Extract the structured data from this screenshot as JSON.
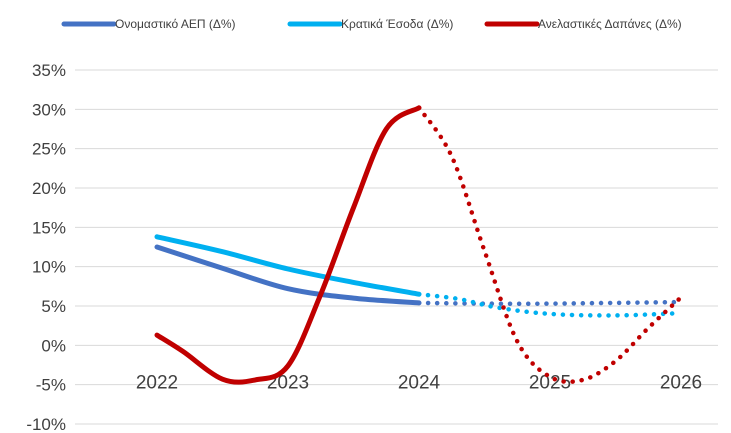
{
  "chart_data": {
    "type": "line",
    "title": "",
    "xlabel": "",
    "ylabel": "",
    "x": [
      2022,
      2023,
      2024,
      2025,
      2026
    ],
    "x_tick_labels": [
      "2022",
      "2023",
      "2024",
      "2025",
      "2026"
    ],
    "y_tick_labels": [
      "35%",
      "30%",
      "25%",
      "20%",
      "15%",
      "10%",
      "5%",
      "0%",
      "-5%",
      "-10%"
    ],
    "ylim": [
      -10,
      35
    ],
    "y_unit": "%",
    "grid": "horizontal",
    "legend_position": "top",
    "projection_from": 2024,
    "series": [
      {
        "name": "Ονομαστικό ΑΕΠ (Δ%)",
        "color": "#4472C4",
        "points": [
          [
            2022,
            12.5
          ],
          [
            2022.5,
            9.8
          ],
          [
            2023,
            7.2
          ],
          [
            2023.5,
            6.0
          ],
          [
            2024,
            5.4
          ],
          [
            2024.5,
            5.3
          ],
          [
            2025,
            5.3
          ],
          [
            2025.5,
            5.4
          ],
          [
            2026,
            5.5
          ]
        ]
      },
      {
        "name": "Κρατικά Έσοδα (Δ%)",
        "color": "#00B0F0",
        "points": [
          [
            2022,
            13.8
          ],
          [
            2022.5,
            11.9
          ],
          [
            2023,
            9.7
          ],
          [
            2023.5,
            8.0
          ],
          [
            2024,
            6.5
          ],
          [
            2024.3,
            5.9
          ],
          [
            2024.6,
            4.8
          ],
          [
            2025,
            4.0
          ],
          [
            2025.5,
            3.8
          ],
          [
            2026,
            4.1
          ]
        ]
      },
      {
        "name": "Ανελαστικές Δαπάνες (Δ%)",
        "color": "#C00000",
        "points": [
          [
            2022,
            1.3
          ],
          [
            2022.2,
            -0.8
          ],
          [
            2022.5,
            -4.3
          ],
          [
            2022.75,
            -4.4
          ],
          [
            2023,
            -2.6
          ],
          [
            2023.25,
            6.5
          ],
          [
            2023.5,
            17.5
          ],
          [
            2023.75,
            27.5
          ],
          [
            2024,
            30.2
          ],
          [
            2024.25,
            24.0
          ],
          [
            2024.5,
            12.0
          ],
          [
            2024.75,
            0.5
          ],
          [
            2025,
            -4.0
          ],
          [
            2025.25,
            -4.4
          ],
          [
            2025.5,
            -2.0
          ],
          [
            2025.75,
            2.2
          ],
          [
            2026,
            6.1
          ]
        ]
      }
    ]
  }
}
